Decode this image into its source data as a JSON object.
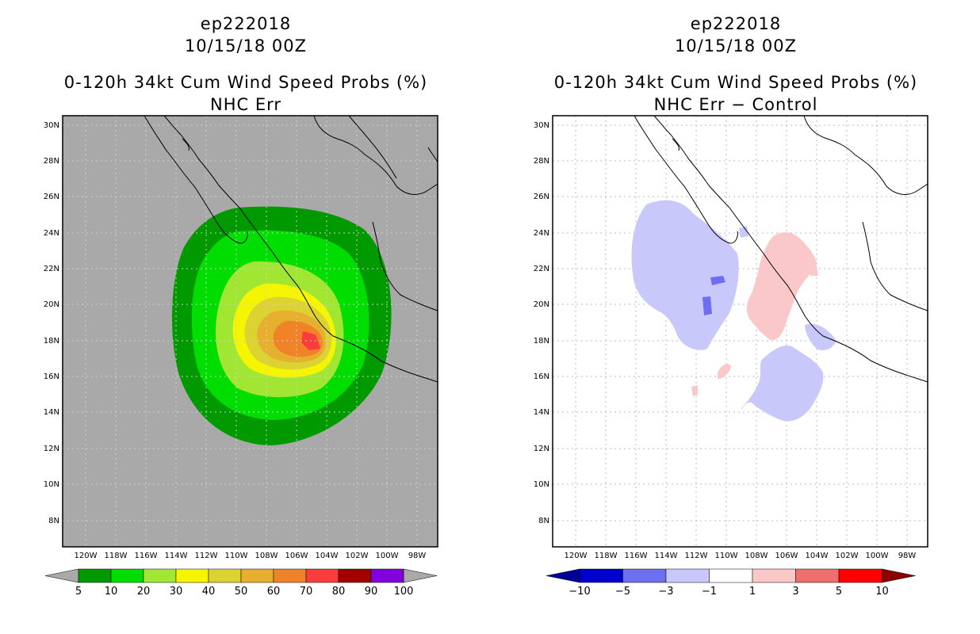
{
  "left": {
    "storm": "ep222018",
    "date": "10/15/18 00Z",
    "title": "0-120h 34kt Cum Wind Speed Probs (%)",
    "subtitle": "NHC Err",
    "lat_labels": [
      "30N",
      "28N",
      "26N",
      "24N",
      "22N",
      "20N",
      "18N",
      "16N",
      "14N",
      "12N",
      "10N",
      "8N"
    ],
    "lon_labels": [
      "120W",
      "118W",
      "116W",
      "114W",
      "112W",
      "110W",
      "108W",
      "106W",
      "104W",
      "102W",
      "100W",
      "98W"
    ],
    "colorbar": {
      "labels": [
        "5",
        "10",
        "20",
        "30",
        "40",
        "50",
        "60",
        "70",
        "80",
        "90",
        "100"
      ],
      "colors": [
        "#009a00",
        "#00dd00",
        "#a0e632",
        "#f5f500",
        "#dcd232",
        "#e6af2d",
        "#f08228",
        "#fa3c3c",
        "#a00000",
        "#8200dc"
      ],
      "end_color": "#a9a9a9"
    },
    "background": "#a9a9a9"
  },
  "right": {
    "storm": "ep222018",
    "date": "10/15/18 00Z",
    "title": "0-120h 34kt Cum Wind Speed Probs (%)",
    "subtitle": "NHC Err − Control",
    "lat_labels": [
      "30N",
      "28N",
      "26N",
      "24N",
      "22N",
      "20N",
      "18N",
      "16N",
      "14N",
      "12N",
      "10N",
      "8N"
    ],
    "lon_labels": [
      "120W",
      "118W",
      "116W",
      "114W",
      "112W",
      "110W",
      "108W",
      "106W",
      "104W",
      "102W",
      "100W",
      "98W"
    ],
    "colorbar": {
      "labels": [
        "−10",
        "−5",
        "−3",
        "−1",
        "1",
        "3",
        "5",
        "10"
      ],
      "colors": [
        "#0000cd",
        "#6e6ef0",
        "#c8c8fa",
        "#ffffff",
        "#fac8c8",
        "#f06e6e",
        "#ff0000"
      ],
      "low_end": "#000096",
      "high_end": "#8c0000"
    }
  }
}
